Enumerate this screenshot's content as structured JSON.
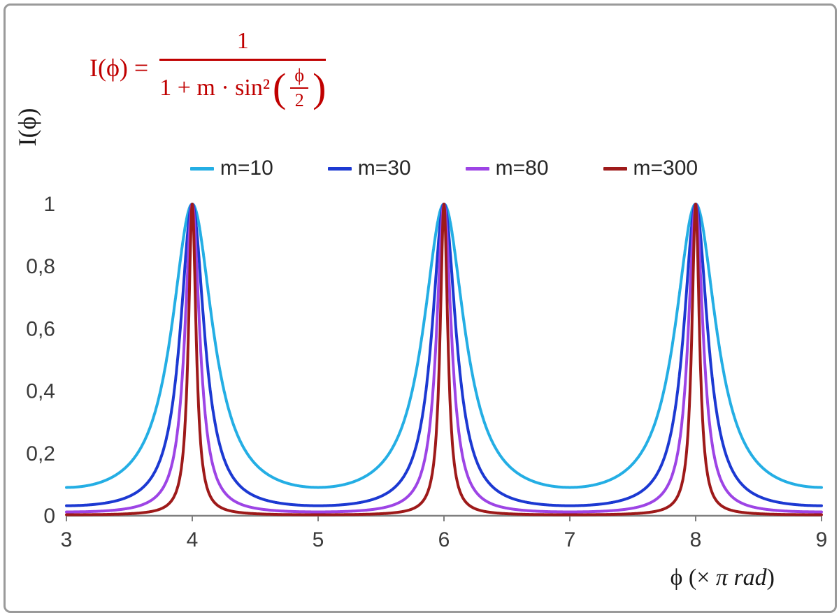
{
  "formula": {
    "lhs": "I(ϕ) =",
    "numerator": "1",
    "den_prefix": "1 + m · sin²",
    "inner_numerator": "ϕ",
    "inner_denominator": "2",
    "color": "#c00000"
  },
  "axes": {
    "y_title": "I(ϕ)",
    "x_title_prefix": "ϕ  (× ",
    "x_title_italic": "π rad",
    "x_title_suffix": ")"
  },
  "chart_data": {
    "type": "line",
    "title": "",
    "formula_text": "I(φ) = 1 / (1 + m·sin²(φ/2)), φ plotted in units of π rad",
    "xlabel": "ϕ (× π rad)",
    "ylabel": "I(ϕ)",
    "xlim": [
      3,
      9
    ],
    "ylim": [
      0,
      1
    ],
    "grid": false,
    "legend_position": "top-center",
    "axis_color": "#7f7f7f",
    "tick_text_color": "#3b3b3b",
    "x_ticks": [
      {
        "value": 3,
        "label": "3"
      },
      {
        "value": 4,
        "label": "4"
      },
      {
        "value": 5,
        "label": "5"
      },
      {
        "value": 6,
        "label": "6"
      },
      {
        "value": 7,
        "label": "7"
      },
      {
        "value": 8,
        "label": "8"
      },
      {
        "value": 9,
        "label": "9"
      }
    ],
    "y_ticks": [
      {
        "value": 0,
        "label": "0"
      },
      {
        "value": 0.2,
        "label": "0,2"
      },
      {
        "value": 0.4,
        "label": "0,4"
      },
      {
        "value": 0.6,
        "label": "0,6"
      },
      {
        "value": 0.8,
        "label": "0,8"
      },
      {
        "value": 1,
        "label": "1"
      }
    ],
    "peaks_at_x": [
      4,
      6,
      8
    ],
    "peak_value": 1,
    "samples_per_unit": 400,
    "series": [
      {
        "label": "m=10",
        "m": 10,
        "color": "#24aee4",
        "min_value": 0.0909
      },
      {
        "label": "m=30",
        "m": 30,
        "color": "#1c39d2",
        "min_value": 0.0323
      },
      {
        "label": "m=80",
        "m": 80,
        "color": "#9d44e5",
        "min_value": 0.0123
      },
      {
        "label": "m=300",
        "m": 300,
        "color": "#9e1a1a",
        "min_value": 0.0033
      }
    ]
  }
}
